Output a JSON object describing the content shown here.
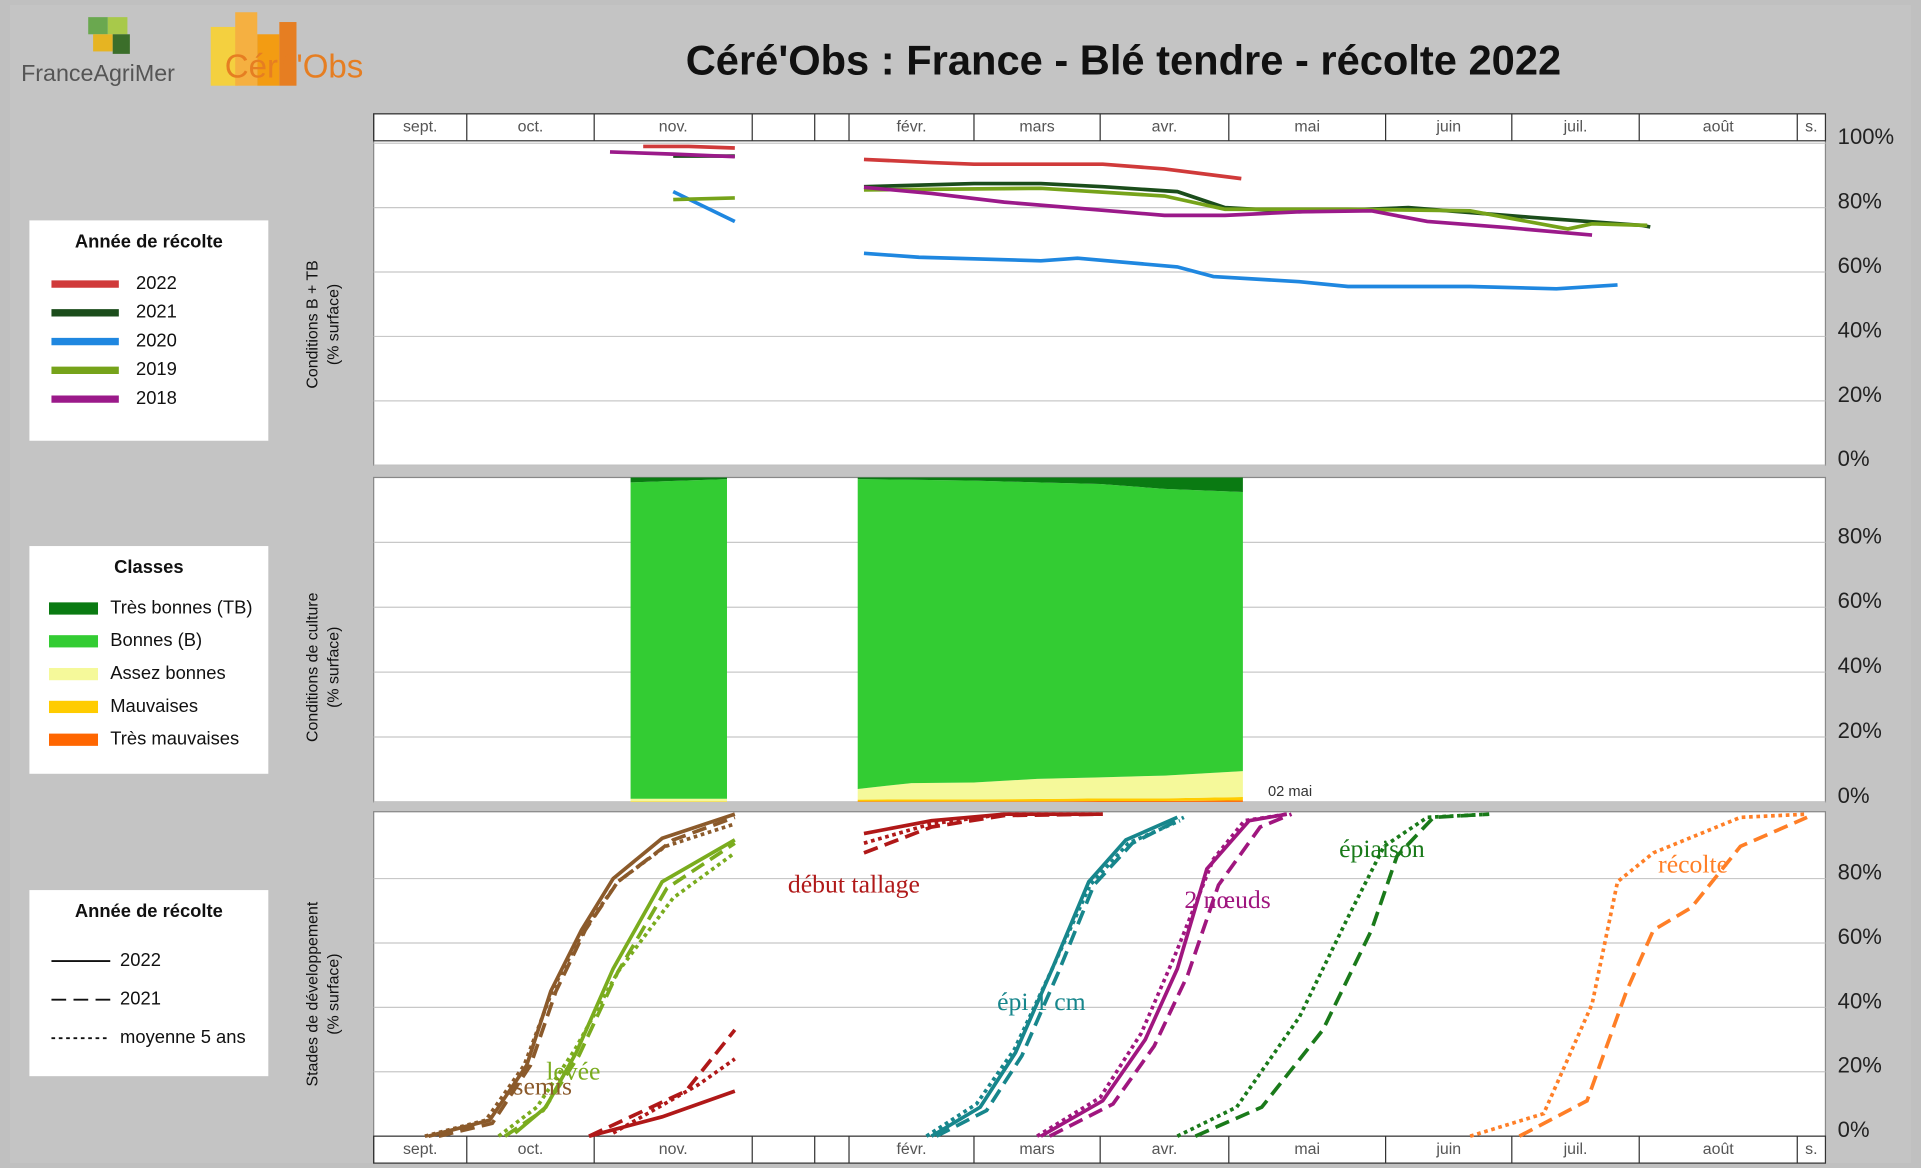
{
  "header": {
    "logo1": "FranceAgriMer",
    "logo2": "Céré'Obs",
    "title": "Céré'Obs : France - Blé tendre - récolte 2022"
  },
  "chart_data": [
    {
      "type": "line",
      "ylabel": [
        "Conditions B + TB",
        "(% surface)"
      ],
      "categories": [
        "sept.",
        "oct.",
        "nov.",
        null,
        null,
        "févr.",
        "mars",
        "avr.",
        "mai",
        "juin",
        "juil.",
        "août",
        "s."
      ],
      "xlim": [
        0,
        13
      ],
      "ylim": [
        0,
        100
      ],
      "yticks": [
        {
          "value": 0,
          "label": "0%"
        },
        {
          "value": 20,
          "label": "20%"
        },
        {
          "value": 40,
          "label": "40%"
        },
        {
          "value": 60,
          "label": "60%"
        },
        {
          "value": 80,
          "label": "80%"
        },
        {
          "value": 100,
          "label": "100%"
        }
      ],
      "grid": true,
      "legend_title": "Année de récolte",
      "series": [
        {
          "name": "2022",
          "color": "#d03a3a",
          "x": [
            2.31,
            2.6,
            2.89,
            4,
            5.12,
            5.66,
            6.0,
            6.53,
            7.02,
            7.5,
            8.08
          ],
          "values": [
            99,
            99,
            98.5,
            null,
            95,
            94,
            93.5,
            93.5,
            93.5,
            92,
            89
          ]
        },
        {
          "name": "2021",
          "color": "#1b4d1b",
          "x": [
            2.5,
            2.89,
            4,
            5.12,
            6.0,
            6.53,
            7.02,
            7.6,
            7.97,
            8.45,
            9.18,
            10.15,
            11.02,
            11.07
          ],
          "values": [
            96,
            96,
            null,
            86.5,
            87.5,
            87.5,
            86.5,
            85,
            80,
            78.7,
            80,
            77,
            74.5,
            74
          ]
        },
        {
          "name": "2020",
          "color": "#1f87e0",
          "x": [
            2.5,
            2.89,
            4,
            5.12,
            5.56,
            6.53,
            6.82,
            7.6,
            7.88,
            8.45,
            8.76,
            9.67,
            10.35,
            10.83
          ],
          "values": [
            85,
            75.7,
            null,
            65.8,
            64.6,
            63.5,
            64.3,
            61.6,
            58.6,
            57,
            55.5,
            55.5,
            54.8,
            56
          ]
        },
        {
          "name": "2019",
          "color": "#76a31a",
          "x": [
            2.5,
            2.89,
            4,
            5.12,
            6.53,
            7.5,
            7.97,
            8.76,
            9.67,
            10.44,
            10.63,
            11.05
          ],
          "values": [
            82.5,
            83,
            null,
            85.5,
            86,
            83.6,
            79.5,
            79.5,
            79,
            73.4,
            75,
            74.5
          ]
        },
        {
          "name": "2018",
          "color": "#9b1a8a",
          "x": [
            2.1,
            2.5,
            2.89,
            4,
            5.12,
            5.66,
            6.24,
            7.5,
            7.97,
            8.45,
            8.91,
            9.33,
            9.96,
            10.63
          ],
          "values": [
            97.3,
            96.6,
            95.8,
            null,
            86.3,
            84.4,
            81.7,
            77.6,
            77.6,
            78.7,
            79,
            75.7,
            73.8,
            71.5
          ]
        }
      ]
    },
    {
      "type": "stacked_area",
      "ylabel": [
        "Conditions de culture",
        "(% surface)"
      ],
      "xlim": [
        0,
        13
      ],
      "ylim": [
        0,
        100
      ],
      "yticks": [
        {
          "value": 0,
          "label": "0%"
        },
        {
          "value": 20,
          "label": "20%"
        },
        {
          "value": 40,
          "label": "40%"
        },
        {
          "value": 60,
          "label": "60%"
        },
        {
          "value": 80,
          "label": "80%"
        }
      ],
      "grid": true,
      "legend_title": "Classes",
      "annotation": "02 mai",
      "x": [
        2.23,
        2.84,
        4,
        5.07,
        5.5,
        6.0,
        6.5,
        7.0,
        7.5,
        8.09
      ],
      "series": [
        {
          "name": "Très bonnes (TB)",
          "color": "#0a7a12",
          "values": [
            1.5,
            0.5,
            null,
            0.5,
            0.7,
            1,
            1.5,
            2,
            3.5,
            4.5
          ]
        },
        {
          "name": "Bonnes (B)",
          "color": "#33cc33",
          "values": [
            97.5,
            98.5,
            null,
            95.5,
            93.5,
            93,
            91.4,
            90.4,
            88.4,
            86
          ]
        },
        {
          "name": "Assez bonnes",
          "color": "#f5f99a",
          "values": [
            0.9,
            0.9,
            null,
            3.3,
            5,
            5.2,
            6.2,
            6.5,
            7,
            8
          ]
        },
        {
          "name": "Mauvaises",
          "color": "#ffcc00",
          "values": [
            0.1,
            0.1,
            null,
            0.5,
            0.6,
            0.6,
            0.7,
            0.8,
            0.8,
            1.0
          ]
        },
        {
          "name": "Très mauvaises",
          "color": "#ff6600",
          "values": [
            0,
            0,
            null,
            0.2,
            0.2,
            0.2,
            0.2,
            0.3,
            0.3,
            0.5
          ]
        }
      ]
    },
    {
      "type": "stage_lines",
      "ylabel": [
        "Stades de développement",
        "(% surface)"
      ],
      "categories": [
        "sept.",
        "oct.",
        "nov.",
        null,
        null,
        "févr.",
        "mars",
        "avr.",
        "mai",
        "juin",
        "juil.",
        "août",
        "s."
      ],
      "xlim": [
        0,
        13
      ],
      "ylim": [
        0,
        100
      ],
      "yticks": [
        {
          "value": 0,
          "label": "0%"
        },
        {
          "value": 20,
          "label": "20%"
        },
        {
          "value": 40,
          "label": "40%"
        },
        {
          "value": 60,
          "label": "60%"
        },
        {
          "value": 80,
          "label": "80%"
        }
      ],
      "grid": true,
      "legend_title": "Année de récolte",
      "legend": [
        {
          "name": "2022",
          "dash": "solid"
        },
        {
          "name": "2021",
          "dash": "dashed"
        },
        {
          "name": "moyenne 5 ans",
          "dash": "dotted"
        }
      ],
      "stages": [
        {
          "name": "semis",
          "color": "#8b5a2b"
        },
        {
          "name": "levée",
          "color": "#7aac1e"
        },
        {
          "name": "début tallage",
          "color": "#b01818"
        },
        {
          "name": "épi 1 cm",
          "color": "#17868c"
        },
        {
          "name": "2 nœuds",
          "color": "#a0167f"
        },
        {
          "name": "épiaison",
          "color": "#1a7a1a"
        },
        {
          "name": "récolte",
          "color": "#ff7f27"
        }
      ],
      "series": [
        {
          "stage": 0,
          "line": 0,
          "x": [
            0.59,
            1.18,
            1.47,
            1.66,
            1.9,
            2.12,
            2.43,
            2.89
          ],
          "values": [
            0,
            5,
            22,
            45,
            64,
            80,
            92.5,
            100
          ]
        },
        {
          "stage": 0,
          "line": 1,
          "x": [
            0.7,
            1.2,
            1.5,
            1.7,
            1.93,
            2.15,
            2.5,
            2.89
          ],
          "values": [
            0,
            4,
            22,
            45,
            64,
            79,
            92,
            99
          ]
        },
        {
          "stage": 0,
          "line": 2,
          "x": [
            0.55,
            1.15,
            1.45,
            1.68,
            1.92,
            2.15,
            2.45,
            2.89
          ],
          "values": [
            0,
            5,
            22,
            46,
            64,
            79,
            90,
            97
          ]
        },
        {
          "stage": 1,
          "line": 0,
          "x": [
            1.38,
            1.62,
            1.86,
            2.12,
            2.43,
            2.89
          ],
          "values": [
            1,
            9,
            26,
            52,
            79,
            92
          ]
        },
        {
          "stage": 1,
          "line": 1,
          "x": [
            1.3,
            1.6,
            1.88,
            2.15,
            2.46,
            2.89
          ],
          "values": [
            0,
            8,
            25,
            51,
            77,
            91
          ]
        },
        {
          "stage": 1,
          "line": 2,
          "x": [
            1.25,
            1.55,
            1.85,
            2.15,
            2.5,
            2.89
          ],
          "values": [
            0,
            9,
            27,
            51,
            74,
            88
          ]
        },
        {
          "stage": 2,
          "line": 0,
          "x": [
            1.96,
            2.43,
            2.89,
            4,
            5.12,
            5.66,
            6.24,
            7.02
          ],
          "values": [
            0,
            6,
            14,
            null,
            94,
            98,
            100,
            100
          ]
        },
        {
          "stage": 2,
          "line": 1,
          "x": [
            1.96,
            2.58,
            2.89,
            4,
            5.12,
            5.66,
            6.24,
            7.02
          ],
          "values": [
            0,
            14,
            33,
            null,
            88,
            96,
            99.6,
            100
          ]
        },
        {
          "stage": 2,
          "line": 2,
          "x": [
            2.12,
            2.66,
            2.89,
            4,
            5.12,
            5.66,
            6.24,
            7.02
          ],
          "values": [
            1,
            16,
            24,
            null,
            91,
            97,
            100,
            100
          ]
        },
        {
          "stage": 3,
          "line": 0,
          "x": [
            5.66,
            6.05,
            6.33,
            6.62,
            6.91,
            7.2,
            7.6
          ],
          "values": [
            0,
            9,
            26,
            52,
            79,
            92,
            99
          ]
        },
        {
          "stage": 3,
          "line": 1,
          "x": [
            5.7,
            6.1,
            6.38,
            6.67,
            6.95,
            7.25,
            7.65
          ],
          "values": [
            0,
            8,
            25,
            51,
            78,
            91,
            99
          ]
        },
        {
          "stage": 3,
          "line": 2,
          "x": [
            5.62,
            6.02,
            6.32,
            6.62,
            6.92,
            7.22,
            7.62
          ],
          "values": [
            0,
            10,
            27,
            52,
            78,
            91,
            98
          ]
        },
        {
          "stage": 4,
          "line": 0,
          "x": [
            6.53,
            7.02,
            7.35,
            7.6,
            7.83,
            8.13,
            8.37
          ],
          "values": [
            0,
            11,
            30,
            52,
            83,
            98,
            100
          ]
        },
        {
          "stage": 4,
          "line": 1,
          "x": [
            6.6,
            7.1,
            7.42,
            7.68,
            7.92,
            8.2,
            8.4
          ],
          "values": [
            0,
            10,
            28,
            50,
            78,
            96,
            100
          ]
        },
        {
          "stage": 4,
          "line": 2,
          "x": [
            6.5,
            7.0,
            7.32,
            7.58,
            7.88,
            8.1,
            8.37
          ],
          "values": [
            0,
            12,
            32,
            56,
            86,
            98,
            100
          ]
        },
        {
          "stage": 5,
          "line": 1,
          "x": [
            7.74,
            8.21,
            8.6,
            8.91,
            9.09,
            9.38,
            9.82
          ],
          "values": [
            0,
            9,
            33,
            64,
            87,
            99,
            100
          ]
        },
        {
          "stage": 5,
          "line": 2,
          "x": [
            7.6,
            8.05,
            8.45,
            8.76,
            8.99,
            9.33,
            9.82
          ],
          "values": [
            0,
            9,
            37,
            68,
            90,
            99,
            100
          ]
        },
        {
          "stage": 6,
          "line": 1,
          "x": [
            10.06,
            10.59,
            10.9,
            11.09,
            11.33,
            11.64,
            12.35
          ],
          "values": [
            0,
            11,
            45,
            64,
            71,
            90,
            99
          ]
        },
        {
          "stage": 6,
          "line": 2,
          "x": [
            9.67,
            10.25,
            10.63,
            10.83,
            11.09,
            11.64,
            12.35
          ],
          "values": [
            0,
            7,
            41,
            79,
            88,
            99,
            100
          ]
        }
      ]
    }
  ]
}
